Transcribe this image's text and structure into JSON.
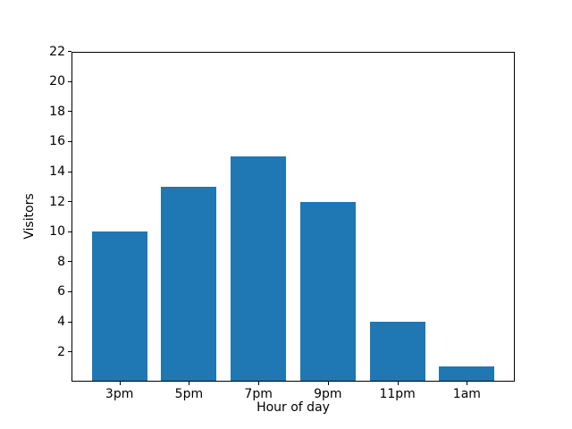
{
  "chart_data": {
    "type": "bar",
    "title": "",
    "categories": [
      "3pm",
      "5pm",
      "7pm",
      "9pm",
      "11pm",
      "1am"
    ],
    "values": [
      10,
      13,
      15,
      12,
      4,
      1
    ],
    "xlabel": "Hour of day",
    "ylabel": "Visitors",
    "yticks": [
      2,
      4,
      6,
      8,
      10,
      12,
      14,
      16,
      18,
      20,
      22
    ],
    "ylim": [
      0,
      22
    ],
    "grid": false,
    "legend": null,
    "bar_color": "#1f77b4",
    "axis_color": "#000000",
    "background_color": "#ffffff"
  }
}
